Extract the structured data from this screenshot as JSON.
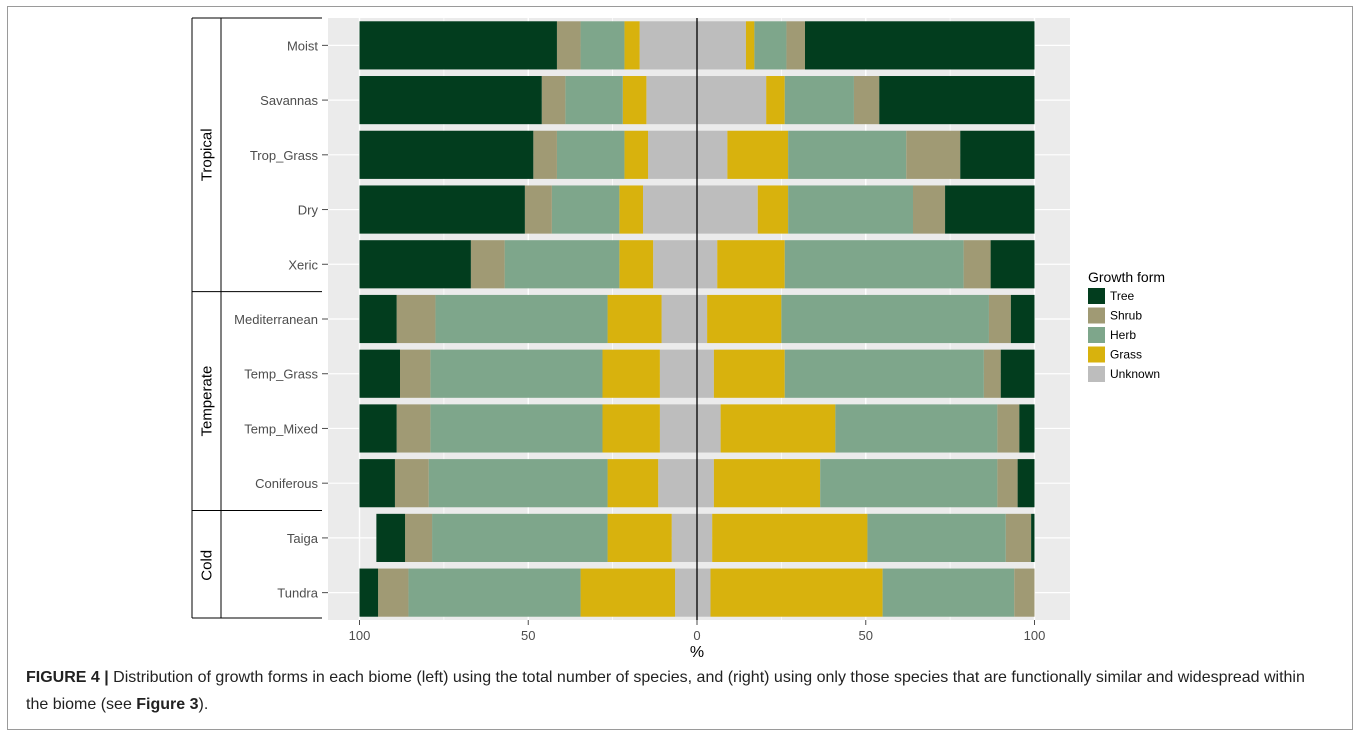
{
  "chart_data": {
    "type": "bar",
    "orientation": "horizontal",
    "stacked": true,
    "diverging": true,
    "xlabel": "%",
    "x_ticks": [
      "100",
      "50",
      "0",
      "50",
      "100"
    ],
    "x_range": [
      -100,
      100
    ],
    "grid": true,
    "legend_position": "right",
    "legend": {
      "title": "Growth form",
      "entries": [
        {
          "name": "Tree",
          "color": "#023d1e"
        },
        {
          "name": "Shrub",
          "color": "#a09a74"
        },
        {
          "name": "Herb",
          "color": "#7ea68b"
        },
        {
          "name": "Grass",
          "color": "#d8b20d"
        },
        {
          "name": "Unknown",
          "color": "#bdbdbd"
        }
      ]
    },
    "groups": [
      {
        "label": "Tropical",
        "categories": [
          "Moist",
          "Savannas",
          "Trop_Grass",
          "Dry",
          "Xeric"
        ]
      },
      {
        "label": "Temperate",
        "categories": [
          "Mediterranean",
          "Temp_Grass",
          "Temp_Mixed",
          "Coniferous"
        ]
      },
      {
        "label": "Cold",
        "categories": [
          "Taiga",
          "Tundra"
        ]
      }
    ],
    "categories": [
      "Moist",
      "Savannas",
      "Trop_Grass",
      "Dry",
      "Xeric",
      "Mediterranean",
      "Temp_Grass",
      "Temp_Mixed",
      "Coniferous",
      "Taiga",
      "Tundra"
    ],
    "left_panel": {
      "series": [
        {
          "name": "Unknown",
          "values": [
            17,
            15,
            14.5,
            16,
            13,
            10.5,
            11,
            11,
            11.5,
            7.5,
            6.5
          ]
        },
        {
          "name": "Grass",
          "values": [
            4.5,
            7,
            7,
            7,
            10,
            16,
            17,
            17,
            15,
            19,
            28
          ]
        },
        {
          "name": "Herb",
          "values": [
            13,
            17,
            20,
            20,
            34,
            51,
            51,
            51,
            53,
            52,
            51
          ]
        },
        {
          "name": "Shrub",
          "values": [
            7,
            7,
            7,
            8,
            10,
            11.5,
            9,
            10,
            10,
            8,
            9
          ]
        },
        {
          "name": "Tree",
          "values": [
            58.5,
            54,
            51.5,
            49,
            33,
            11,
            12,
            11,
            10.5,
            8.5,
            5.5
          ]
        }
      ]
    },
    "right_panel": {
      "series": [
        {
          "name": "Unknown",
          "values": [
            14.5,
            20.5,
            9,
            18,
            6,
            3,
            5,
            7,
            5,
            4.5,
            4
          ]
        },
        {
          "name": "Grass",
          "values": [
            2.5,
            5.5,
            18,
            9,
            20,
            22,
            21,
            34,
            31.5,
            46,
            51
          ]
        },
        {
          "name": "Herb",
          "values": [
            9.5,
            20.5,
            35,
            37,
            53,
            61.5,
            59,
            48,
            52.5,
            41,
            39
          ]
        },
        {
          "name": "Shrub",
          "values": [
            5.5,
            7.5,
            16,
            9.5,
            8,
            6.5,
            5,
            6.5,
            6,
            7.5,
            6
          ]
        },
        {
          "name": "Tree",
          "values": [
            68,
            46,
            22,
            26.5,
            13,
            7,
            10,
            4.5,
            5,
            1,
            0
          ]
        }
      ]
    }
  },
  "caption": {
    "label": "FIGURE 4 |",
    "text_before": " Distribution of growth forms in each biome (left) using the total number of species, and (right) using only those species that are functionally similar and widespread within the biome (see ",
    "ref": "Figure 3",
    "text_after": ")."
  }
}
